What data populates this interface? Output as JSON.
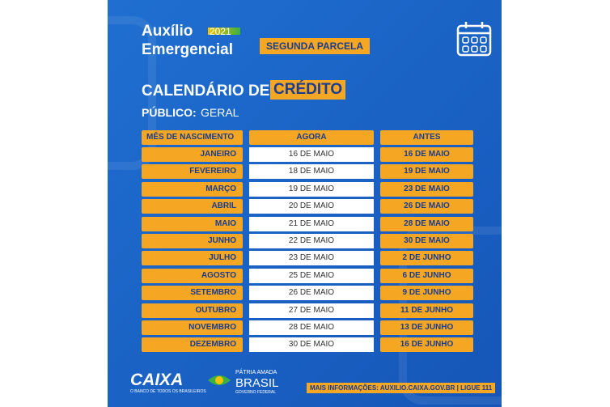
{
  "header": {
    "title_line1": "Auxílio",
    "title_line2": "Emergencial",
    "year": "2021",
    "badge": "SEGUNDA PARCELA",
    "calendar_title": "CALENDÁRIO DE",
    "calendar_highlight": "CRÉDITO",
    "audience_label": "PÚBLICO:",
    "audience_value": "GERAL"
  },
  "table": {
    "columns": [
      "MÊS DE NASCIMENTO",
      "AGORA",
      "ANTES"
    ],
    "rows": [
      [
        "JANEIRO",
        "16 DE MAIO",
        "16 DE MAIO"
      ],
      [
        "FEVEREIRO",
        "18 DE MAIO",
        "19 DE MAIO"
      ],
      [
        "MARÇO",
        "19 DE MAIO",
        "23 DE MAIO"
      ],
      [
        "ABRIL",
        "20 DE MAIO",
        "26 DE MAIO"
      ],
      [
        "MAIO",
        "21 DE MAIO",
        "28 DE MAIO"
      ],
      [
        "JUNHO",
        "22 DE MAIO",
        "30 DE MAIO"
      ],
      [
        "JULHO",
        "23 DE MAIO",
        "2 DE JUNHO"
      ],
      [
        "AGOSTO",
        "25 DE MAIO",
        "6 DE JUNHO"
      ],
      [
        "SETEMBRO",
        "26 DE MAIO",
        "9 DE JUNHO"
      ],
      [
        "OUTUBRO",
        "27 DE MAIO",
        "11 DE JUNHO"
      ],
      [
        "NOVEMBRO",
        "28 DE MAIO",
        "13 DE JUNHO"
      ],
      [
        "DEZEMBRO",
        "30 DE MAIO",
        "16 DE JUNHO"
      ]
    ]
  },
  "footer": {
    "caixa": "CAIXA",
    "caixa_slogan": "O BANCO DE TODOS OS BRASILEIROS",
    "gov_line1": "PÁTRIA AMADA",
    "gov_line2": "BRASIL",
    "gov_line3": "GOVERNO FEDERAL",
    "info_label": "MAIS INFORMAÇÕES:",
    "info_value": "AUXILIO.CAIXA.GOV.BR | LIGUE 111"
  }
}
